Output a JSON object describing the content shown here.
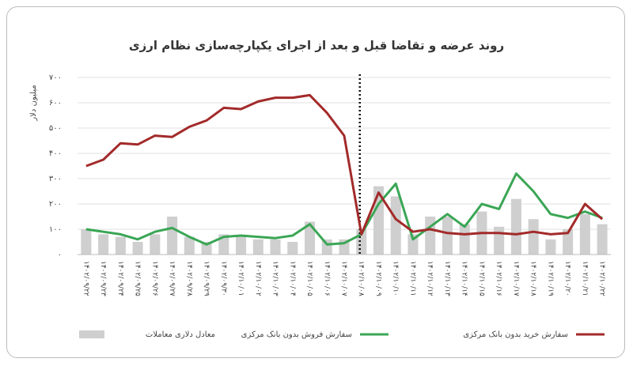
{
  "chart_data": {
    "type": "line",
    "title": "روند عرضه و تقاضا قبل و بعد از اجرای یکپارچه‌سازی نظام ارزی",
    "y_label": "میلیون دلار",
    "categories": [
      "۱۴۰۲/۰۹/۲۲",
      "۱۴۰۲/۰۹/۲۳",
      "۱۴۰۲/۰۹/۲۴",
      "۱۴۰۲/۰۹/۲۵",
      "۱۴۰۲/۰۹/۲۶",
      "۱۴۰۲/۰۹/۲۷",
      "۱۴۰۲/۰۹/۲۸",
      "۱۴۰۲/۰۹/۲۹",
      "۱۴۰۲/۰۹/۳۰",
      "۱۴۰۲/۱۰/۰۱",
      "۱۴۰۲/۱۰/۰۲",
      "۱۴۰۲/۱۰/۰۳",
      "۱۴۰۲/۱۰/۰۴",
      "۱۴۰۲/۱۰/۰۵",
      "۱۴۰۲/۱۰/۰۶",
      "۱۴۰۲/۱۰/۰۷",
      "۱۴۰۲/۱۰/۰۸",
      "۱۴۰۲/۱۰/۰۹",
      "۱۴۰۲/۱۰/۱۰",
      "۱۴۰۲/۱۰/۱۱",
      "۱۴۰۲/۱۰/۱۲",
      "۱۴۰۲/۱۰/۱۳",
      "۱۴۰۲/۱۰/۱۴",
      "۱۴۰۲/۱۰/۱۵",
      "۱۴۰۲/۱۰/۱۶",
      "۱۴۰۲/۱۰/۱۷",
      "۱۴۰۲/۱۰/۱۸",
      "۱۴۰۲/۱۰/۱۹",
      "۱۴۰۲/۱۰/۲۰",
      "۱۴۰۲/۱۰/۲۱",
      "۱۴۰۲/۱۰/۲۲"
    ],
    "series": [
      {
        "name": "معادل دلاری معاملات",
        "type": "bar",
        "color": "#cfcfcf",
        "values": [
          100,
          80,
          70,
          50,
          80,
          150,
          70,
          50,
          80,
          75,
          60,
          60,
          50,
          130,
          60,
          60,
          100,
          270,
          230,
          80,
          150,
          150,
          120,
          170,
          110,
          220,
          140,
          60,
          100,
          160,
          120
        ]
      },
      {
        "name": "سفارش فروش بدون بانک مرکزی",
        "type": "line",
        "color": "#3aa655",
        "values": [
          100,
          90,
          80,
          60,
          90,
          105,
          70,
          40,
          70,
          75,
          70,
          65,
          75,
          120,
          40,
          45,
          80,
          200,
          280,
          60,
          110,
          160,
          110,
          200,
          180,
          320,
          250,
          160,
          145,
          170,
          145
        ]
      },
      {
        "name": "سفارش خرید بدون بانک مرکزی",
        "type": "line",
        "color": "#a32a2a",
        "values": [
          350,
          375,
          440,
          435,
          470,
          465,
          505,
          530,
          580,
          575,
          605,
          620,
          620,
          630,
          560,
          470,
          80,
          245,
          140,
          90,
          100,
          85,
          80,
          85,
          85,
          80,
          90,
          80,
          85,
          200,
          140
        ]
      }
    ],
    "ylim": [
      0,
      700
    ],
    "yticks": [
      {
        "value": 0,
        "label": "۰"
      },
      {
        "value": 100,
        "label": "۱۰۰"
      },
      {
        "value": 200,
        "label": "۲۰۰"
      },
      {
        "value": 300,
        "label": "۳۰۰"
      },
      {
        "value": 400,
        "label": "۴۰۰"
      },
      {
        "value": 500,
        "label": "۵۰۰"
      },
      {
        "value": 600,
        "label": "۶۰۰"
      },
      {
        "value": 700,
        "label": "۷۰۰"
      }
    ],
    "grid": true
  }
}
